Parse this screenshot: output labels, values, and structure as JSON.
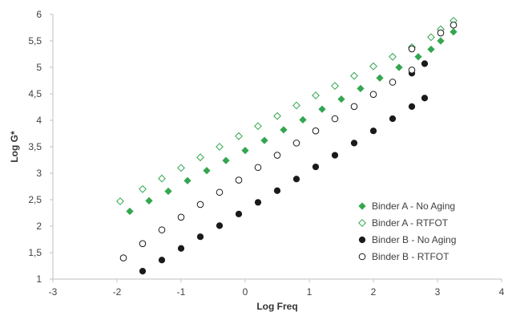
{
  "chart_data": {
    "type": "scatter",
    "title": "",
    "xlabel": "Log Freq",
    "ylabel": "Log G*",
    "xlim": [
      -3,
      4
    ],
    "ylim": [
      1,
      6
    ],
    "x_ticks": [
      -3,
      -2,
      -1,
      0,
      1,
      2,
      3,
      4
    ],
    "y_ticks": [
      1,
      1.5,
      2,
      2.5,
      3,
      3.5,
      4,
      4.5,
      5,
      5.5,
      6
    ],
    "x_tick_labels": [
      "-3",
      "-2",
      "-1",
      "0",
      "1",
      "2",
      "3",
      "4"
    ],
    "y_tick_labels": [
      "1",
      "1,5",
      "2",
      "2,5",
      "3",
      "3,5",
      "4",
      "4,5",
      "5",
      "5,5",
      "6"
    ],
    "grid": false,
    "legend_position": "lower-right",
    "series": [
      {
        "name": "Binder A - No Aging",
        "marker": "filled-diamond",
        "color": "#33a650",
        "points": [
          [
            -1.8,
            2.28
          ],
          [
            -1.5,
            2.48
          ],
          [
            -1.2,
            2.66
          ],
          [
            -0.9,
            2.86
          ],
          [
            -0.6,
            3.05
          ],
          [
            -0.3,
            3.24
          ],
          [
            0.0,
            3.43
          ],
          [
            0.3,
            3.62
          ],
          [
            0.6,
            3.82
          ],
          [
            0.9,
            4.01
          ],
          [
            1.2,
            4.21
          ],
          [
            1.5,
            4.4
          ],
          [
            1.8,
            4.6
          ],
          [
            2.1,
            4.8
          ],
          [
            2.4,
            5.0
          ],
          [
            2.7,
            5.2
          ],
          [
            2.9,
            5.34
          ],
          [
            3.05,
            5.5
          ],
          [
            3.25,
            5.67
          ]
        ]
      },
      {
        "name": "Binder A -  RTFOT",
        "marker": "hollow-diamond",
        "color": "#33a650",
        "points": [
          [
            -1.95,
            2.47
          ],
          [
            -1.6,
            2.7
          ],
          [
            -1.3,
            2.9
          ],
          [
            -1.0,
            3.1
          ],
          [
            -0.7,
            3.3
          ],
          [
            -0.4,
            3.5
          ],
          [
            -0.1,
            3.7
          ],
          [
            0.2,
            3.89
          ],
          [
            0.5,
            4.08
          ],
          [
            0.8,
            4.28
          ],
          [
            1.1,
            4.47
          ],
          [
            1.4,
            4.65
          ],
          [
            1.7,
            4.84
          ],
          [
            2.0,
            5.02
          ],
          [
            2.3,
            5.2
          ],
          [
            2.6,
            5.38
          ],
          [
            2.9,
            5.57
          ],
          [
            3.05,
            5.72
          ],
          [
            3.25,
            5.88
          ]
        ]
      },
      {
        "name": "Binder B - No Aging",
        "marker": "filled-circle",
        "color": "#1a1a1a",
        "points": [
          [
            -1.6,
            1.15
          ],
          [
            -1.3,
            1.36
          ],
          [
            -1.0,
            1.58
          ],
          [
            -0.7,
            1.8
          ],
          [
            -0.4,
            2.01
          ],
          [
            -0.1,
            2.23
          ],
          [
            0.2,
            2.45
          ],
          [
            0.5,
            2.67
          ],
          [
            0.8,
            2.89
          ],
          [
            1.1,
            3.12
          ],
          [
            1.4,
            3.34
          ],
          [
            1.7,
            3.57
          ],
          [
            2.0,
            3.8
          ],
          [
            2.3,
            4.03
          ],
          [
            2.6,
            4.26
          ],
          [
            2.8,
            4.42
          ],
          [
            2.6,
            4.89
          ],
          [
            2.8,
            5.07
          ]
        ]
      },
      {
        "name": "Binder B - RTFOT",
        "marker": "hollow-circle",
        "color": "#1a1a1a",
        "points": [
          [
            -1.9,
            1.4
          ],
          [
            -1.6,
            1.67
          ],
          [
            -1.3,
            1.93
          ],
          [
            -1.0,
            2.17
          ],
          [
            -0.7,
            2.41
          ],
          [
            -0.4,
            2.64
          ],
          [
            -0.1,
            2.87
          ],
          [
            0.2,
            3.11
          ],
          [
            0.5,
            3.34
          ],
          [
            0.8,
            3.57
          ],
          [
            1.1,
            3.8
          ],
          [
            1.4,
            4.03
          ],
          [
            1.7,
            4.26
          ],
          [
            2.0,
            4.49
          ],
          [
            2.3,
            4.72
          ],
          [
            2.6,
            4.95
          ],
          [
            2.6,
            5.35
          ],
          [
            3.05,
            5.65
          ],
          [
            3.25,
            5.8
          ]
        ]
      }
    ]
  }
}
